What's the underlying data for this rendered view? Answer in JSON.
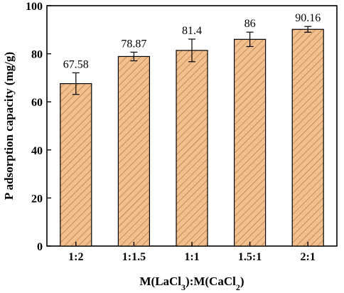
{
  "chart_data": {
    "type": "bar",
    "categories": [
      "1:2",
      "1:1.5",
      "1:1",
      "1.5:1",
      "2:1"
    ],
    "values": [
      67.58,
      78.87,
      81.4,
      86,
      90.16
    ],
    "value_labels": [
      "67.58",
      "78.87",
      "81.4",
      "86",
      "90.16"
    ],
    "error": [
      4.5,
      1.8,
      4.7,
      3.0,
      1.2
    ],
    "ylabel": "P adsorption capacity (mg/g)",
    "xlabel_parts": {
      "m1": "M(LaCl",
      "sub1": "3",
      "mid": "):M(CaCl",
      "sub2": "2",
      "end": ")"
    },
    "ylim": [
      0,
      100
    ],
    "yticks": [
      "0",
      "20",
      "40",
      "60",
      "80",
      "100"
    ],
    "bar_color": "#f2c08e",
    "hatch_color": "#b0783c",
    "grid": false
  }
}
